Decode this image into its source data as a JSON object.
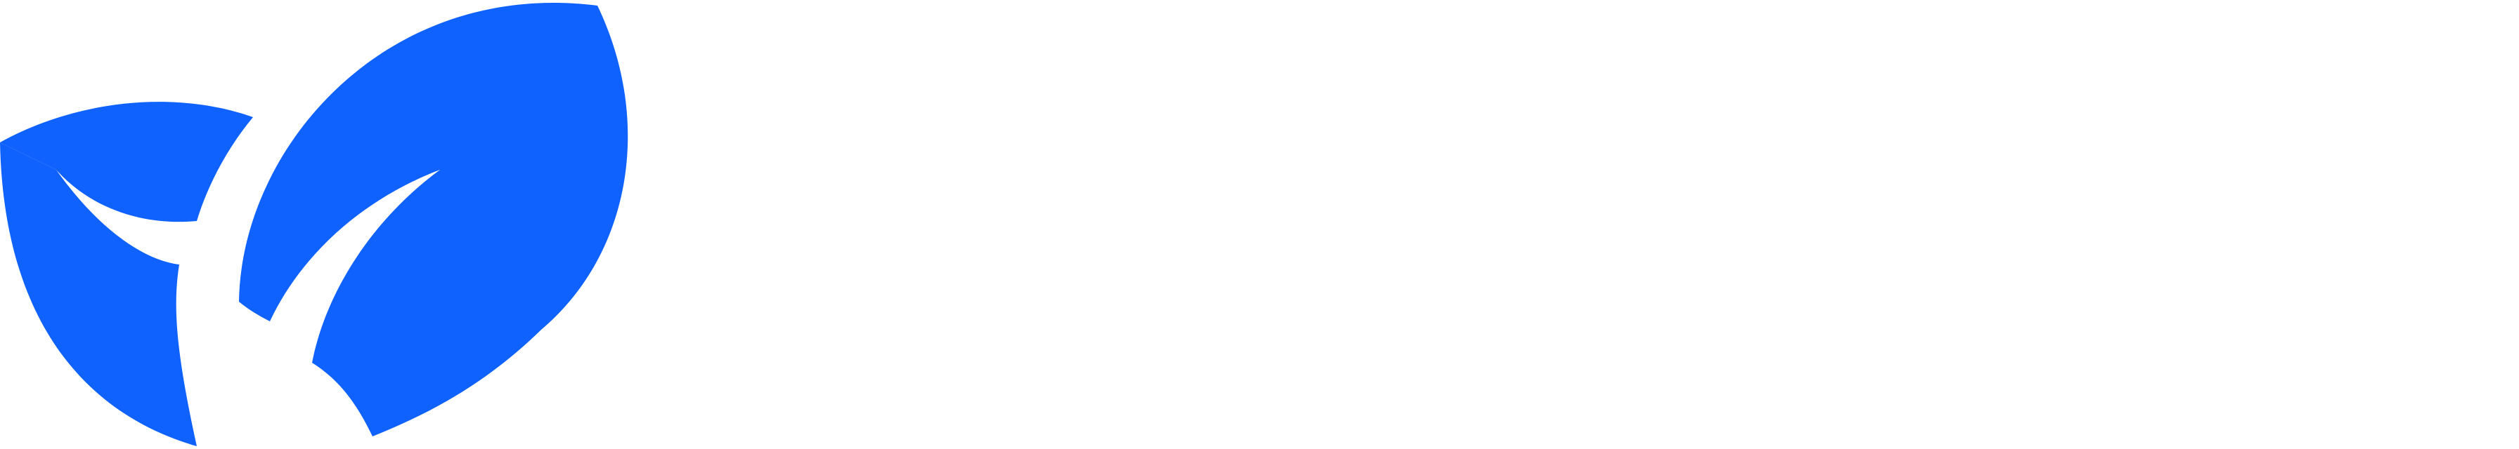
{
  "brand": {
    "icon": "leaf-logo-icon",
    "accent_color": "#1062FE",
    "background_color": "#FFFFFF"
  }
}
